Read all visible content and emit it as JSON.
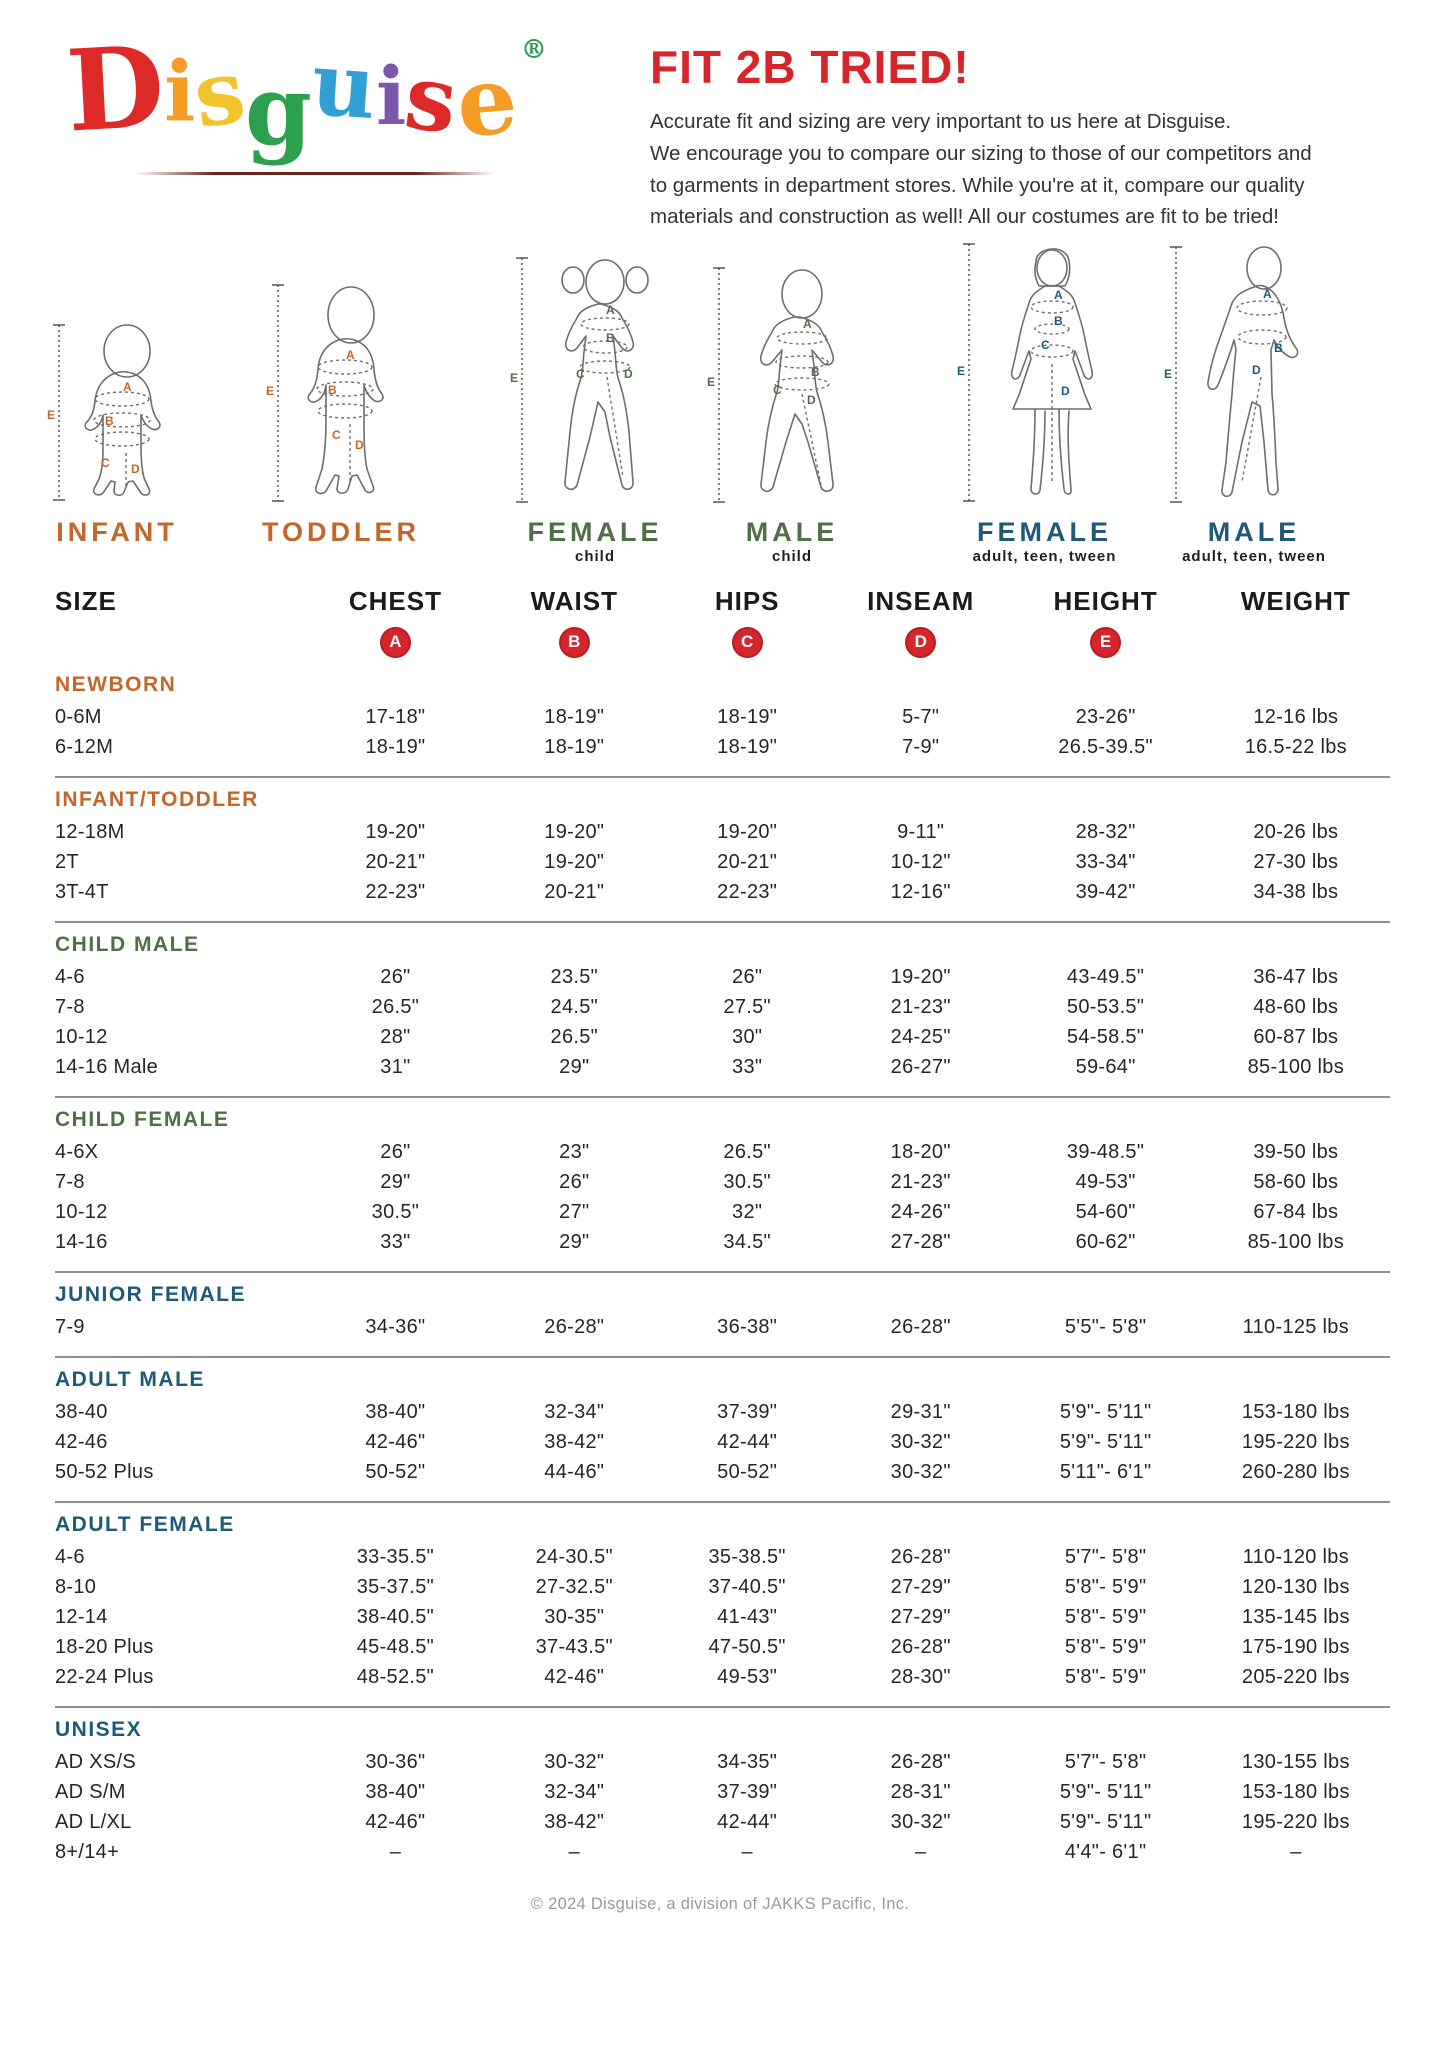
{
  "logo": {
    "letters": [
      {
        "ch": "D",
        "color": "#dd2a28"
      },
      {
        "ch": "i",
        "color": "#f59c27"
      },
      {
        "ch": "s",
        "color": "#f2c42b"
      },
      {
        "ch": "g",
        "color": "#2ca04d"
      },
      {
        "ch": "u",
        "color": "#2f9fd4"
      },
      {
        "ch": "i",
        "color": "#7d57ab"
      },
      {
        "ch": "s",
        "color": "#dd2a28"
      },
      {
        "ch": "e",
        "color": "#f59c27"
      }
    ],
    "registered_mark": "®",
    "registered_color": "#2ca04d"
  },
  "intro": {
    "title": "FIT 2B TRIED!",
    "lines": [
      "Accurate fit and sizing are very important to us here at Disguise.",
      "We encourage you to compare our sizing to those of our competitors and",
      "to garments in department stores. While you're at it, compare our quality",
      "materials and construction as well! All our costumes are fit to be tried!"
    ]
  },
  "measure_letters": [
    "A",
    "B",
    "C",
    "D",
    "E"
  ],
  "figures": [
    {
      "id": "infant",
      "label": "INFANT",
      "sublabel": "",
      "label_color": "#c2662a"
    },
    {
      "id": "toddler",
      "label": "TODDLER",
      "sublabel": "",
      "label_color": "#c2662a"
    },
    {
      "id": "female-child",
      "label": "FEMALE",
      "sublabel": "child",
      "label_color": "#4f7046"
    },
    {
      "id": "male-child",
      "label": "MALE",
      "sublabel": "child",
      "label_color": "#4f7046"
    },
    {
      "id": "female-adult",
      "label": "FEMALE",
      "sublabel": "adult, teen, tween",
      "label_color": "#1e5a75"
    },
    {
      "id": "male-adult",
      "label": "MALE",
      "sublabel": "adult, teen, tween",
      "label_color": "#1e5a75"
    }
  ],
  "table": {
    "columns": [
      "SIZE",
      "CHEST",
      "WAIST",
      "HIPS",
      "INSEAM",
      "HEIGHT",
      "WEIGHT"
    ],
    "badges": [
      "A",
      "B",
      "C",
      "D",
      "E"
    ],
    "badge_color": "#d6252b",
    "sections": [
      {
        "title": "NEWBORN",
        "color": "#c2662a",
        "rows": [
          [
            "0-6M",
            "17-18\"",
            "18-19\"",
            "18-19\"",
            "5-7\"",
            "23-26\"",
            "12-16 lbs"
          ],
          [
            "6-12M",
            "18-19\"",
            "18-19\"",
            "18-19\"",
            "7-9\"",
            "26.5-39.5\"",
            "16.5-22 lbs"
          ]
        ]
      },
      {
        "title": "INFANT/TODDLER",
        "color": "#c2662a",
        "rows": [
          [
            "12-18M",
            "19-20\"",
            "19-20\"",
            "19-20\"",
            "9-11\"",
            "28-32\"",
            "20-26 lbs"
          ],
          [
            "2T",
            "20-21\"",
            "19-20\"",
            "20-21\"",
            "10-12\"",
            "33-34\"",
            "27-30 lbs"
          ],
          [
            "3T-4T",
            "22-23\"",
            "20-21\"",
            "22-23\"",
            "12-16\"",
            "39-42\"",
            "34-38 lbs"
          ]
        ]
      },
      {
        "title": "CHILD MALE",
        "color": "#4f7046",
        "rows": [
          [
            "4-6",
            "26\"",
            "23.5\"",
            "26\"",
            "19-20\"",
            "43-49.5\"",
            "36-47 lbs"
          ],
          [
            "7-8",
            "26.5\"",
            "24.5\"",
            "27.5\"",
            "21-23\"",
            "50-53.5\"",
            "48-60 lbs"
          ],
          [
            "10-12",
            "28\"",
            "26.5\"",
            "30\"",
            "24-25\"",
            "54-58.5\"",
            "60-87 lbs"
          ],
          [
            "14-16 Male",
            "31\"",
            "29\"",
            "33\"",
            "26-27\"",
            "59-64\"",
            "85-100 lbs"
          ]
        ]
      },
      {
        "title": "CHILD FEMALE",
        "color": "#4f7046",
        "rows": [
          [
            "4-6X",
            "26\"",
            "23\"",
            "26.5\"",
            "18-20\"",
            "39-48.5\"",
            "39-50 lbs"
          ],
          [
            "7-8",
            "29\"",
            "26\"",
            "30.5\"",
            "21-23\"",
            "49-53\"",
            "58-60 lbs"
          ],
          [
            "10-12",
            "30.5\"",
            "27\"",
            "32\"",
            "24-26\"",
            "54-60\"",
            "67-84 lbs"
          ],
          [
            "14-16",
            "33\"",
            "29\"",
            "34.5\"",
            "27-28\"",
            "60-62\"",
            "85-100 lbs"
          ]
        ]
      },
      {
        "title": "JUNIOR FEMALE",
        "color": "#1e5a75",
        "rows": [
          [
            "7-9",
            "34-36\"",
            "26-28\"",
            "36-38\"",
            "26-28\"",
            "5'5\"- 5'8\"",
            "110-125 lbs"
          ]
        ]
      },
      {
        "title": "ADULT MALE",
        "color": "#1e5a75",
        "rows": [
          [
            "38-40",
            "38-40\"",
            "32-34\"",
            "37-39\"",
            "29-31\"",
            "5'9\"- 5'11\"",
            "153-180 lbs"
          ],
          [
            "42-46",
            "42-46\"",
            "38-42\"",
            "42-44\"",
            "30-32\"",
            "5'9\"- 5'11\"",
            "195-220 lbs"
          ],
          [
            "50-52 Plus",
            "50-52\"",
            "44-46\"",
            "50-52\"",
            "30-32\"",
            "5'11\"- 6'1\"",
            "260-280 lbs"
          ]
        ]
      },
      {
        "title": "ADULT FEMALE",
        "color": "#1e5a75",
        "rows": [
          [
            "4-6",
            "33-35.5\"",
            "24-30.5\"",
            "35-38.5\"",
            "26-28\"",
            "5'7\"- 5'8\"",
            "110-120 lbs"
          ],
          [
            "8-10",
            "35-37.5\"",
            "27-32.5\"",
            "37-40.5\"",
            "27-29\"",
            "5'8\"- 5'9\"",
            "120-130 lbs"
          ],
          [
            "12-14",
            "38-40.5\"",
            "30-35\"",
            "41-43\"",
            "27-29\"",
            "5'8\"- 5'9\"",
            "135-145 lbs"
          ],
          [
            "18-20 Plus",
            "45-48.5\"",
            "37-43.5\"",
            "47-50.5\"",
            "26-28\"",
            "5'8\"- 5'9\"",
            "175-190 lbs"
          ],
          [
            "22-24 Plus",
            "48-52.5\"",
            "42-46\"",
            "49-53\"",
            "28-30\"",
            "5'8\"- 5'9\"",
            "205-220 lbs"
          ]
        ]
      },
      {
        "title": "UNISEX",
        "color": "#1e5a75",
        "rows": [
          [
            "AD XS/S",
            "30-36\"",
            "30-32\"",
            "34-35\"",
            "26-28\"",
            "5'7\"- 5'8\"",
            "130-155 lbs"
          ],
          [
            "AD S/M",
            "38-40\"",
            "32-34\"",
            "37-39\"",
            "28-31\"",
            "5'9\"- 5'11\"",
            "153-180 lbs"
          ],
          [
            "AD L/XL",
            "42-46\"",
            "38-42\"",
            "42-44\"",
            "30-32\"",
            "5'9\"- 5'11\"",
            "195-220 lbs"
          ],
          [
            "8+/14+",
            "–",
            "–",
            "–",
            "–",
            "4'4\"- 6'1\"",
            "–"
          ]
        ]
      }
    ]
  },
  "footer": {
    "copyright": "© 2024 Disguise, a division of JAKKS Pacific, Inc."
  }
}
